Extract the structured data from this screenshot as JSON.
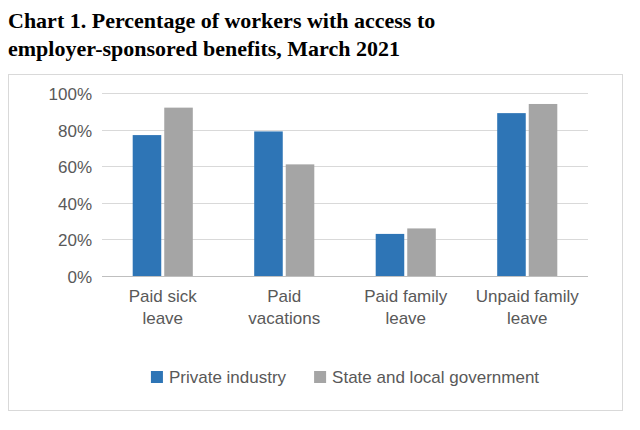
{
  "chart_data": {
    "type": "bar",
    "title": "Chart 1. Percentage of workers with access to employer-sponsored benefits, March 2021",
    "categories": [
      "Paid sick leave",
      "Paid vacations",
      "Paid family leave",
      "Unpaid family leave"
    ],
    "series": [
      {
        "name": "Private industry",
        "color": "#2e75b6",
        "values": [
          77,
          79,
          23,
          89
        ]
      },
      {
        "name": "State and local government",
        "color": "#a5a5a5",
        "values": [
          92,
          61,
          26,
          94
        ]
      }
    ],
    "ylim": [
      0,
      100
    ],
    "yticks": [
      {
        "value": 0,
        "label": "0%"
      },
      {
        "value": 20,
        "label": "20%"
      },
      {
        "value": 40,
        "label": "40%"
      },
      {
        "value": 60,
        "label": "60%"
      },
      {
        "value": 80,
        "label": "80%"
      },
      {
        "value": 100,
        "label": "100%"
      }
    ],
    "grid": true,
    "legend": "bottom"
  }
}
